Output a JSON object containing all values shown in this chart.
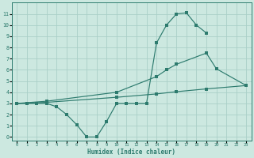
{
  "xlabel": "Humidex (Indice chaleur)",
  "bg_color": "#cce8e0",
  "grid_color": "#aacfc8",
  "line_color": "#2d7b6e",
  "line1_x": [
    0,
    1,
    2,
    3,
    4,
    5,
    6,
    7,
    8,
    9,
    10,
    11,
    12,
    13,
    14,
    15,
    16,
    17,
    18,
    19
  ],
  "line1_y": [
    3.0,
    3.0,
    3.0,
    3.0,
    2.7,
    2.0,
    1.1,
    0.0,
    0.0,
    1.4,
    3.0,
    3.0,
    3.0,
    3.0,
    8.4,
    10.0,
    11.0,
    11.1,
    10.0,
    9.3
  ],
  "line2_x": [
    0,
    3,
    10,
    14,
    15,
    16,
    19,
    20,
    23
  ],
  "line2_y": [
    3.0,
    3.2,
    4.0,
    5.4,
    6.0,
    6.5,
    7.5,
    6.1,
    4.6
  ],
  "line3_x": [
    0,
    3,
    10,
    14,
    16,
    19,
    23
  ],
  "line3_y": [
    3.0,
    3.1,
    3.55,
    3.85,
    4.05,
    4.3,
    4.6
  ],
  "xlim": [
    -0.5,
    23.5
  ],
  "ylim": [
    -0.3,
    12.0
  ],
  "yticks": [
    0,
    1,
    2,
    3,
    4,
    5,
    6,
    7,
    8,
    9,
    10,
    11
  ],
  "xticks": [
    0,
    1,
    2,
    3,
    4,
    5,
    6,
    7,
    8,
    9,
    10,
    11,
    12,
    13,
    14,
    15,
    16,
    17,
    18,
    19,
    20,
    21,
    22,
    23
  ]
}
